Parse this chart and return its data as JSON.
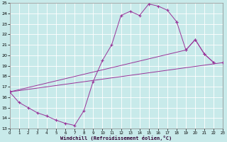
{
  "xlabel": "Windchill (Refroidissement éolien,°C)",
  "xlim": [
    0,
    23
  ],
  "ylim": [
    13,
    25
  ],
  "xticks": [
    0,
    1,
    2,
    3,
    4,
    5,
    6,
    7,
    8,
    9,
    10,
    11,
    12,
    13,
    14,
    15,
    16,
    17,
    18,
    19,
    20,
    21,
    22,
    23
  ],
  "yticks": [
    13,
    14,
    15,
    16,
    17,
    18,
    19,
    20,
    21,
    22,
    23,
    24,
    25
  ],
  "bg_color": "#c8eaea",
  "grid_color": "#ffffff",
  "line_color": "#993399",
  "line1_x": [
    0,
    1,
    2,
    3,
    4,
    5,
    6,
    7,
    8,
    9,
    10,
    11,
    12,
    13,
    14,
    15,
    16,
    17,
    18
  ],
  "line1_y": [
    16.5,
    15.5,
    15.0,
    14.5,
    14.2,
    13.8,
    13.5,
    13.3,
    14.7,
    17.5,
    19.5,
    21.0,
    23.8,
    24.2,
    23.8,
    24.9,
    24.7,
    24.3,
    23.2
  ],
  "line2_x": [
    18,
    19,
    20,
    21,
    22
  ],
  "line2_y": [
    23.2,
    20.5,
    21.5,
    20.1,
    19.3
  ],
  "line3_x": [
    0,
    19,
    20,
    21,
    22
  ],
  "line3_y": [
    16.5,
    20.5,
    21.5,
    20.1,
    19.3
  ],
  "line4_x": [
    0,
    23
  ],
  "line4_y": [
    16.5,
    19.3
  ]
}
